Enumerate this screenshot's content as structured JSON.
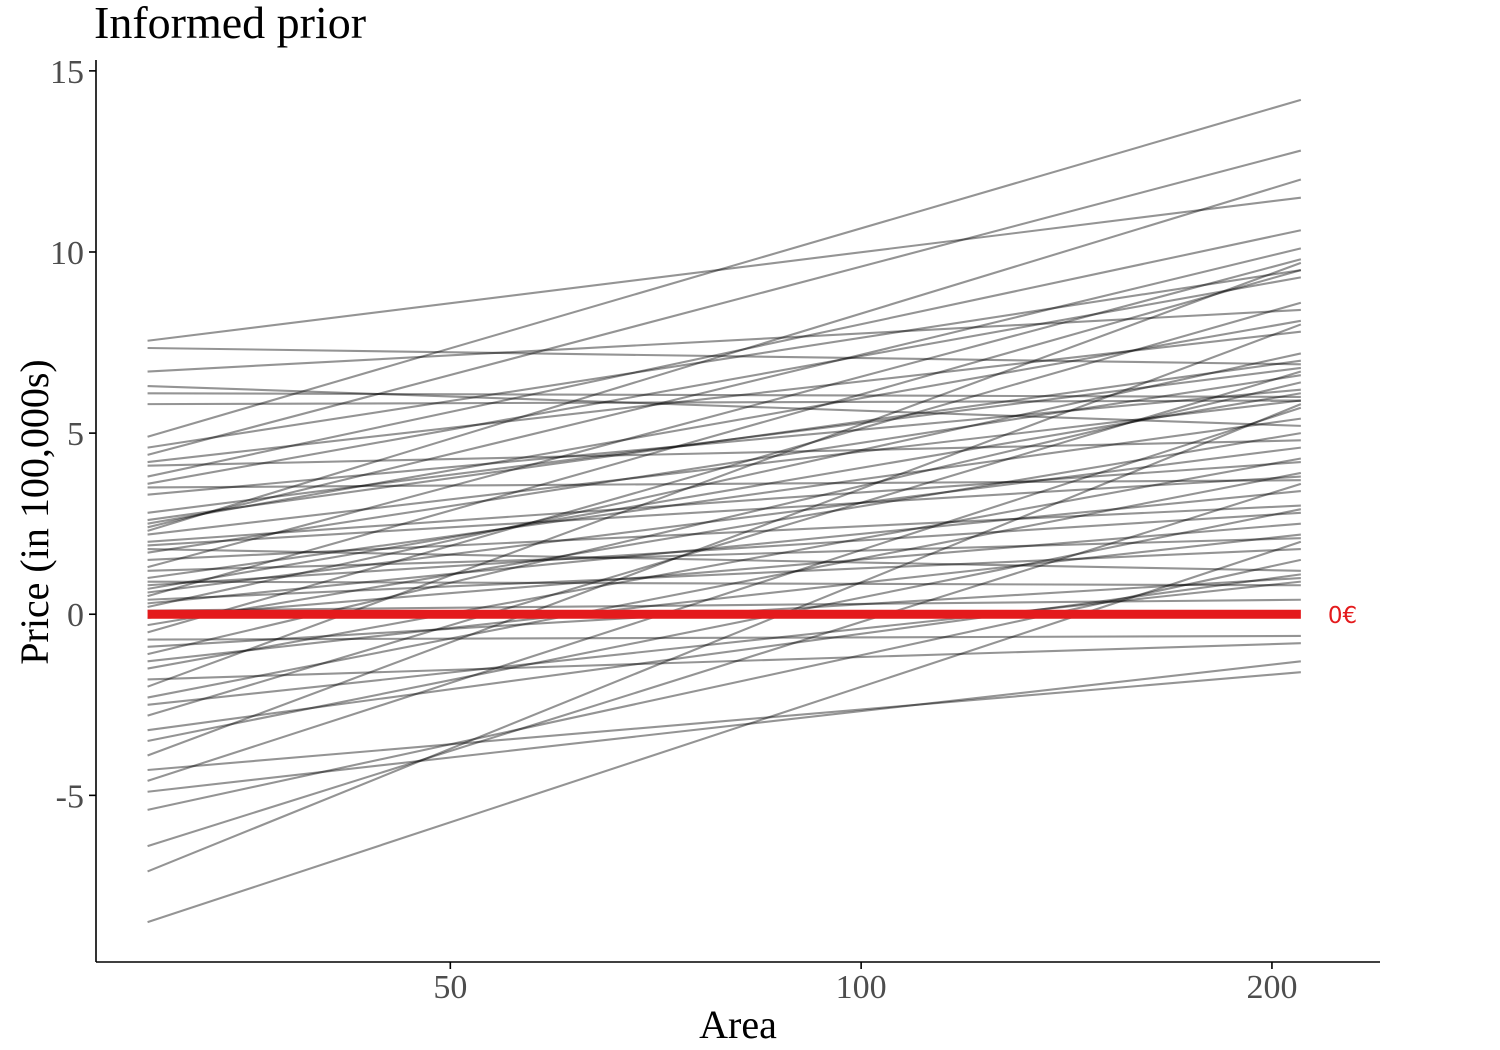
{
  "chart_data": {
    "type": "line",
    "title": "Informed prior",
    "xlabel": "Area",
    "ylabel": "Price (in 100,000s)",
    "x_scale": "log",
    "xlim": [
      27.5,
      240
    ],
    "ylim": [
      -9.6,
      15.3
    ],
    "x_ticks": [
      50,
      100,
      200
    ],
    "x_tick_labels": [
      "50",
      "100",
      "200"
    ],
    "y_ticks": [
      -5,
      0,
      5,
      10,
      15
    ],
    "y_tick_labels": [
      "-5",
      "0",
      "5",
      "10",
      "15"
    ],
    "grid": false,
    "legend": "none",
    "line_color": "#000000",
    "x_range_of_lines": [
      30,
      210
    ],
    "series": [
      {
        "values": [
          7.55,
          11.5
        ]
      },
      {
        "values": [
          7.35,
          6.9
        ]
      },
      {
        "values": [
          6.7,
          8.4
        ]
      },
      {
        "values": [
          6.3,
          5.2
        ]
      },
      {
        "values": [
          6.1,
          6.0
        ]
      },
      {
        "values": [
          5.8,
          5.9
        ]
      },
      {
        "values": [
          4.9,
          14.2
        ]
      },
      {
        "values": [
          4.6,
          9.5
        ]
      },
      {
        "values": [
          4.4,
          12.8
        ]
      },
      {
        "values": [
          4.2,
          7.8
        ]
      },
      {
        "values": [
          4.1,
          4.8
        ]
      },
      {
        "values": [
          3.8,
          10.6
        ]
      },
      {
        "values": [
          3.6,
          9.3
        ]
      },
      {
        "values": [
          3.5,
          3.7
        ]
      },
      {
        "values": [
          3.3,
          6.2
        ]
      },
      {
        "values": [
          2.8,
          6.8
        ]
      },
      {
        "values": [
          2.6,
          7.0
        ]
      },
      {
        "values": [
          2.5,
          8.1
        ]
      },
      {
        "values": [
          2.4,
          10.1
        ]
      },
      {
        "values": [
          2.3,
          12.0
        ]
      },
      {
        "values": [
          2.2,
          5.9
        ]
      },
      {
        "values": [
          2.0,
          4.2
        ]
      },
      {
        "values": [
          1.9,
          3.8
        ]
      },
      {
        "values": [
          1.8,
          1.2
        ]
      },
      {
        "values": [
          1.7,
          6.6
        ]
      },
      {
        "values": [
          1.5,
          3.0
        ]
      },
      {
        "values": [
          1.3,
          9.8
        ]
      },
      {
        "values": [
          1.2,
          2.1
        ]
      },
      {
        "values": [
          1.0,
          5.4
        ]
      },
      {
        "values": [
          0.9,
          0.8
        ]
      },
      {
        "values": [
          0.8,
          2.8
        ]
      },
      {
        "values": [
          0.7,
          6.1
        ]
      },
      {
        "values": [
          0.6,
          4.6
        ]
      },
      {
        "values": [
          0.5,
          9.5
        ]
      },
      {
        "values": [
          0.4,
          1.8
        ]
      },
      {
        "values": [
          0.3,
          3.4
        ]
      },
      {
        "values": [
          0.2,
          7.2
        ]
      },
      {
        "values": [
          0.1,
          0.4
        ]
      },
      {
        "values": [
          -0.1,
          2.5
        ]
      },
      {
        "values": [
          -0.3,
          5.0
        ]
      },
      {
        "values": [
          -0.5,
          8.6
        ]
      },
      {
        "values": [
          -0.7,
          -0.6
        ]
      },
      {
        "values": [
          -0.9,
          1.0
        ]
      },
      {
        "values": [
          -1.1,
          6.4
        ]
      },
      {
        "values": [
          -1.3,
          2.2
        ]
      },
      {
        "values": [
          -1.5,
          4.3
        ]
      },
      {
        "values": [
          -1.8,
          -0.8
        ]
      },
      {
        "values": [
          -2.0,
          9.7
        ]
      },
      {
        "values": [
          -2.3,
          3.9
        ]
      },
      {
        "values": [
          -2.5,
          0.9
        ]
      },
      {
        "values": [
          -2.8,
          6.7
        ]
      },
      {
        "values": [
          -3.2,
          1.1
        ]
      },
      {
        "values": [
          -3.5,
          2.9
        ]
      },
      {
        "values": [
          -3.9,
          8.0
        ]
      },
      {
        "values": [
          -4.3,
          -1.6
        ]
      },
      {
        "values": [
          -4.6,
          5.7
        ]
      },
      {
        "values": [
          -4.9,
          -1.3
        ]
      },
      {
        "values": [
          -5.4,
          1.5
        ]
      },
      {
        "values": [
          -6.4,
          3.6
        ]
      },
      {
        "values": [
          -7.1,
          5.8
        ]
      },
      {
        "values": [
          -8.5,
          2.0
        ]
      }
    ],
    "reference_line": {
      "y": 0,
      "label": "0€",
      "color": "#e41a1c"
    }
  }
}
